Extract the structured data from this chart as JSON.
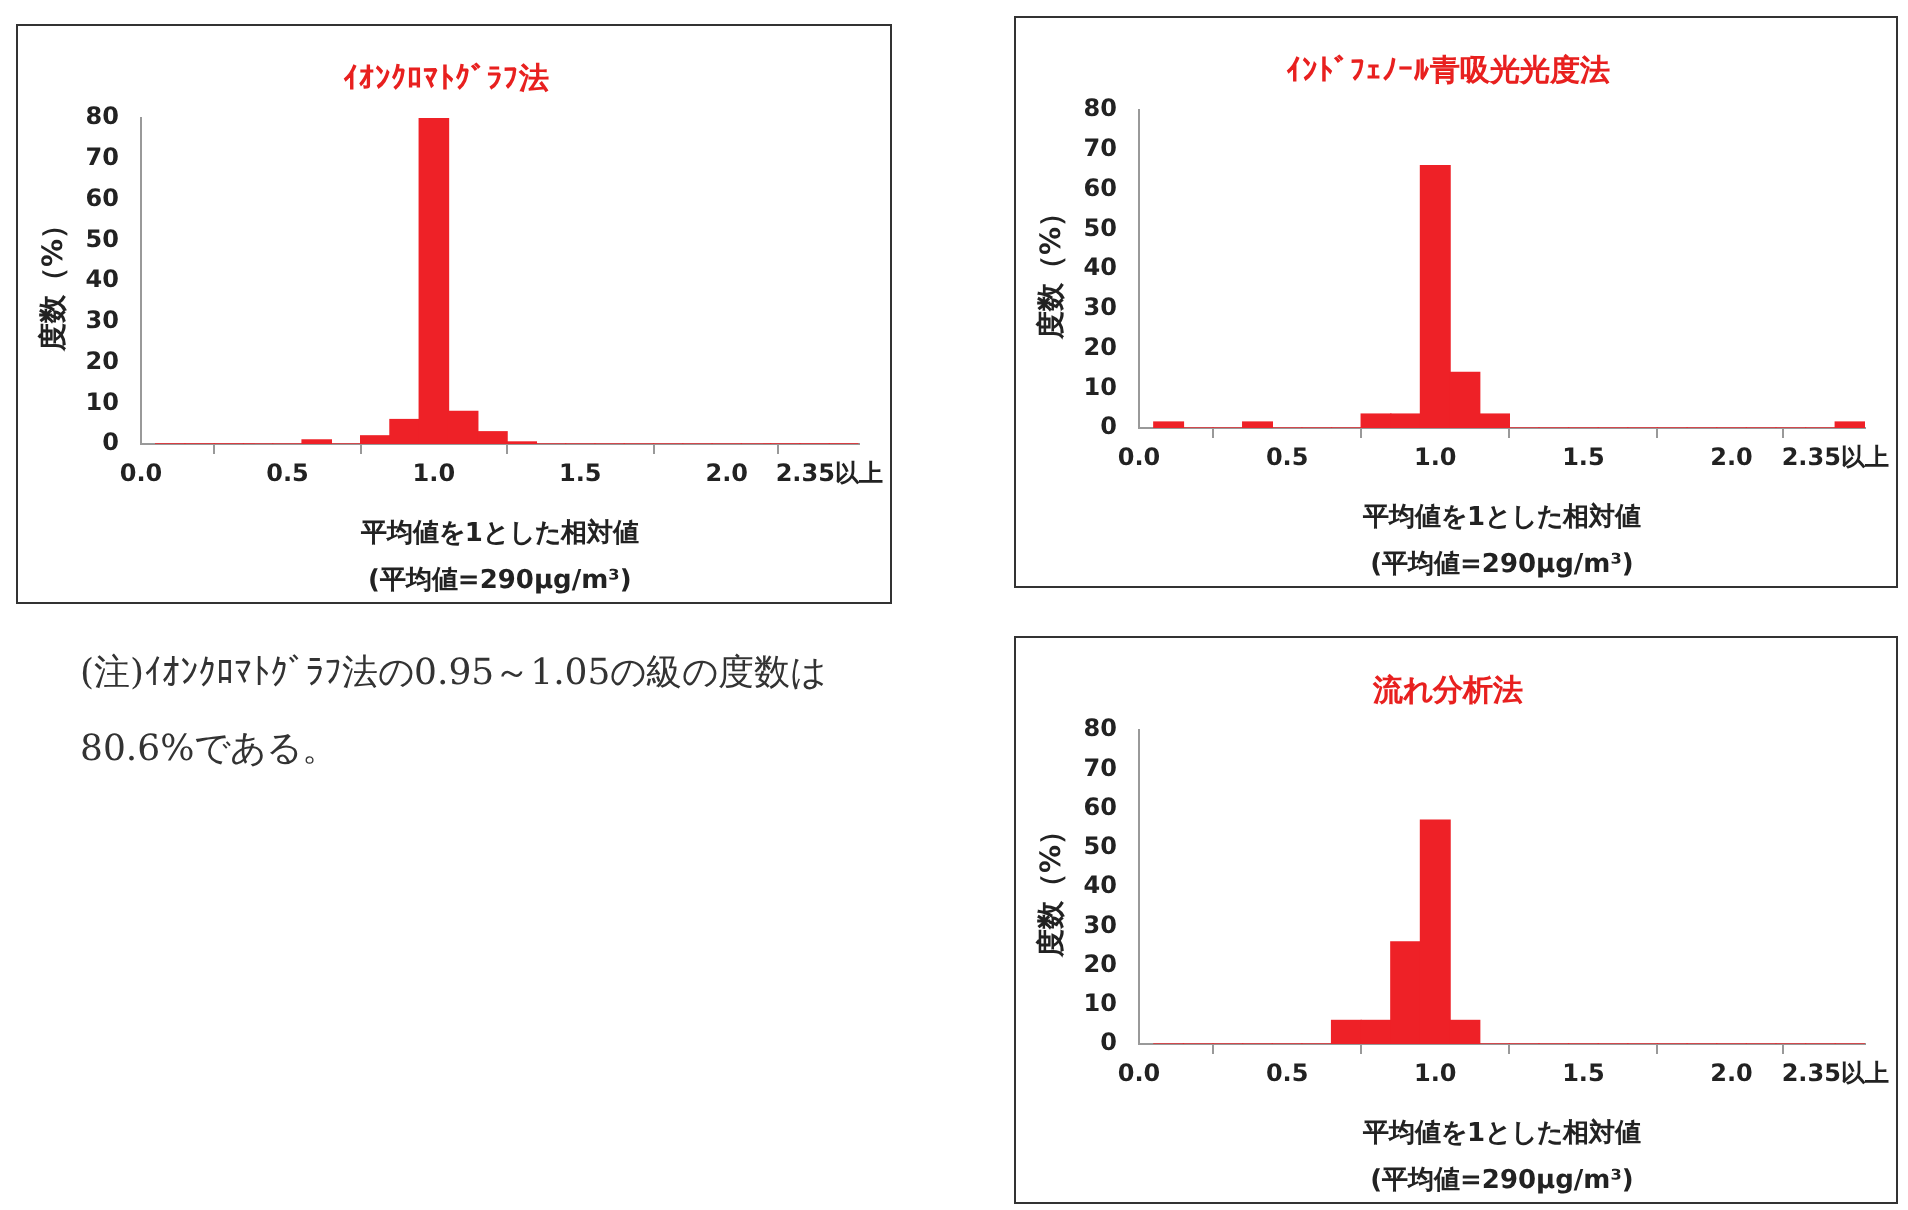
{
  "chart_data": [
    {
      "type": "histogram",
      "title": "ｲｵﾝｸﾛﾏﾄｸﾞﾗﾌ法",
      "xlabel": "平均値を1とした相対値",
      "ylabel": "度数（%）",
      "bins": [
        0.05,
        0.15,
        0.25,
        0.35,
        0.45,
        0.55,
        0.65,
        0.75,
        0.85,
        0.95,
        1.05,
        1.15,
        1.25,
        1.35,
        1.45,
        1.55,
        1.65,
        1.75,
        1.85,
        1.95,
        2.05,
        2.15,
        2.25,
        2.35,
        2.45
      ],
      "values": [
        0,
        0,
        0,
        0,
        0,
        1,
        0,
        2,
        6,
        80,
        8,
        3,
        0.5,
        0,
        0,
        0,
        0,
        0,
        0,
        0,
        0,
        0,
        0,
        0
      ],
      "color": "#ee2127",
      "xlim": [
        0,
        2.45
      ],
      "xticks": [
        {
          "value": 0,
          "label": "0.0"
        },
        {
          "value": 0.5,
          "label": "0.5"
        },
        {
          "value": 1,
          "label": "1.0"
        },
        {
          "value": 1.5,
          "label": "1.5"
        },
        {
          "value": 2,
          "label": "2.0"
        },
        {
          "value": 2.35,
          "label": "2.35以上"
        }
      ],
      "ylim": [
        0,
        80
      ],
      "yticks": [
        0,
        10,
        20,
        30,
        40,
        50,
        60,
        70,
        80
      ],
      "annotations": [
        "(平均値=290μg/m³)",
        "(注)ｲｵﾝｸﾛﾏﾄｸﾞﾗﾌ法の0.95～1.05の級の度数は80.6%である。"
      ]
    },
    {
      "type": "histogram",
      "title": "ｲﾝﾄﾞﾌｪﾉｰﾙ青吸光光度法",
      "xlabel": "平均値を1とした相対値",
      "ylabel": "度数（%）",
      "bins": [
        0.05,
        0.15,
        0.25,
        0.35,
        0.45,
        0.55,
        0.65,
        0.75,
        0.85,
        0.95,
        1.05,
        1.15,
        1.25,
        1.35,
        1.45,
        1.55,
        1.65,
        1.75,
        1.85,
        1.95,
        2.05,
        2.15,
        2.25,
        2.35,
        2.45
      ],
      "values": [
        1.5,
        0,
        0,
        1.5,
        0,
        0,
        0,
        3.5,
        3.5,
        66,
        14,
        3.5,
        0,
        0,
        0,
        0,
        0,
        0,
        0,
        0,
        0,
        0,
        0,
        1.5
      ],
      "color": "#ee2127",
      "xlim": [
        0,
        2.45
      ],
      "xticks": [
        {
          "value": 0,
          "label": "0.0"
        },
        {
          "value": 0.5,
          "label": "0.5"
        },
        {
          "value": 1,
          "label": "1.0"
        },
        {
          "value": 1.5,
          "label": "1.5"
        },
        {
          "value": 2,
          "label": "2.0"
        },
        {
          "value": 2.35,
          "label": "2.35以上"
        }
      ],
      "ylim": [
        0,
        80
      ],
      "yticks": [
        0,
        10,
        20,
        30,
        40,
        50,
        60,
        70,
        80
      ],
      "annotations": [
        "(平均値=290μg/m³)"
      ]
    },
    {
      "type": "histogram",
      "title": "流れ分析法",
      "xlabel": "平均値を1とした相対値",
      "ylabel": "度数（%）",
      "bins": [
        0.05,
        0.15,
        0.25,
        0.35,
        0.45,
        0.55,
        0.65,
        0.75,
        0.85,
        0.95,
        1.05,
        1.15,
        1.25,
        1.35,
        1.45,
        1.55,
        1.65,
        1.75,
        1.85,
        1.95,
        2.05,
        2.15,
        2.25,
        2.35,
        2.45
      ],
      "values": [
        0,
        0,
        0,
        0,
        0,
        0,
        6,
        6,
        26,
        57,
        6,
        0,
        0,
        0,
        0,
        0,
        0,
        0,
        0,
        0,
        0,
        0,
        0,
        0
      ],
      "color": "#ee2127",
      "xlim": [
        0,
        2.45
      ],
      "xticks": [
        {
          "value": 0,
          "label": "0.0"
        },
        {
          "value": 0.5,
          "label": "0.5"
        },
        {
          "value": 1,
          "label": "1.0"
        },
        {
          "value": 1.5,
          "label": "1.5"
        },
        {
          "value": 2,
          "label": "2.0"
        },
        {
          "value": 2.35,
          "label": "2.35以上"
        }
      ],
      "ylim": [
        0,
        80
      ],
      "yticks": [
        0,
        10,
        20,
        30,
        40,
        50,
        60,
        70,
        80
      ],
      "annotations": [
        "(平均値=290μg/m³)"
      ]
    }
  ]
}
